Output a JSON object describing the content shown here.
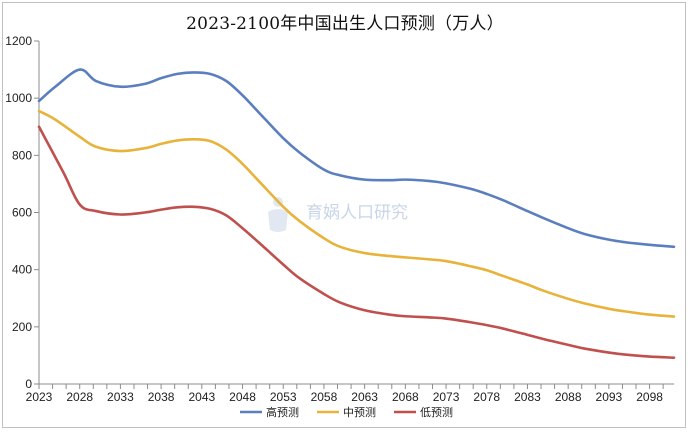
{
  "chart_data": {
    "type": "line",
    "title": "2023-2100年中国出生人口预测（万人）",
    "xlabel": "",
    "ylabel": "",
    "xlim": [
      2023,
      2101
    ],
    "ylim": [
      0,
      1200
    ],
    "y_ticks": [
      0,
      200,
      400,
      600,
      800,
      1000,
      1200
    ],
    "x_ticks": [
      2023,
      2028,
      2033,
      2038,
      2043,
      2048,
      2053,
      2058,
      2063,
      2068,
      2073,
      2078,
      2083,
      2088,
      2093,
      2098
    ],
    "grid": false,
    "legend_position": "bottom",
    "watermark": "育娲人口研究",
    "series": [
      {
        "name": "高预测",
        "color": "#5b7fbe",
        "points": [
          [
            2023,
            990
          ],
          [
            2025,
            1040
          ],
          [
            2028,
            1100
          ],
          [
            2030,
            1060
          ],
          [
            2033,
            1040
          ],
          [
            2036,
            1050
          ],
          [
            2038,
            1070
          ],
          [
            2040,
            1085
          ],
          [
            2042,
            1090
          ],
          [
            2044,
            1085
          ],
          [
            2046,
            1060
          ],
          [
            2048,
            1010
          ],
          [
            2050,
            950
          ],
          [
            2053,
            860
          ],
          [
            2055,
            810
          ],
          [
            2058,
            750
          ],
          [
            2060,
            730
          ],
          [
            2063,
            715
          ],
          [
            2066,
            713
          ],
          [
            2068,
            715
          ],
          [
            2071,
            710
          ],
          [
            2073,
            702
          ],
          [
            2076,
            683
          ],
          [
            2078,
            665
          ],
          [
            2080,
            643
          ],
          [
            2083,
            605
          ],
          [
            2085,
            580
          ],
          [
            2088,
            545
          ],
          [
            2090,
            525
          ],
          [
            2093,
            505
          ],
          [
            2095,
            496
          ],
          [
            2098,
            487
          ],
          [
            2101,
            480
          ]
        ]
      },
      {
        "name": "中预测",
        "color": "#e8b33a",
        "points": [
          [
            2023,
            955
          ],
          [
            2025,
            925
          ],
          [
            2028,
            865
          ],
          [
            2030,
            830
          ],
          [
            2033,
            815
          ],
          [
            2036,
            825
          ],
          [
            2038,
            840
          ],
          [
            2040,
            852
          ],
          [
            2042,
            856
          ],
          [
            2044,
            850
          ],
          [
            2046,
            820
          ],
          [
            2048,
            770
          ],
          [
            2050,
            710
          ],
          [
            2053,
            620
          ],
          [
            2055,
            570
          ],
          [
            2058,
            510
          ],
          [
            2060,
            480
          ],
          [
            2063,
            458
          ],
          [
            2066,
            448
          ],
          [
            2068,
            443
          ],
          [
            2071,
            436
          ],
          [
            2073,
            430
          ],
          [
            2076,
            412
          ],
          [
            2078,
            398
          ],
          [
            2080,
            378
          ],
          [
            2083,
            348
          ],
          [
            2085,
            326
          ],
          [
            2088,
            298
          ],
          [
            2090,
            282
          ],
          [
            2093,
            263
          ],
          [
            2095,
            254
          ],
          [
            2098,
            243
          ],
          [
            2101,
            236
          ]
        ]
      },
      {
        "name": "低预测",
        "color": "#c0504d",
        "points": [
          [
            2023,
            900
          ],
          [
            2026,
            740
          ],
          [
            2028,
            628
          ],
          [
            2030,
            605
          ],
          [
            2033,
            593
          ],
          [
            2036,
            600
          ],
          [
            2038,
            610
          ],
          [
            2040,
            618
          ],
          [
            2042,
            620
          ],
          [
            2044,
            613
          ],
          [
            2046,
            590
          ],
          [
            2048,
            545
          ],
          [
            2050,
            495
          ],
          [
            2053,
            418
          ],
          [
            2055,
            370
          ],
          [
            2058,
            315
          ],
          [
            2060,
            285
          ],
          [
            2063,
            258
          ],
          [
            2066,
            243
          ],
          [
            2068,
            237
          ],
          [
            2071,
            233
          ],
          [
            2073,
            229
          ],
          [
            2076,
            216
          ],
          [
            2078,
            206
          ],
          [
            2080,
            194
          ],
          [
            2083,
            172
          ],
          [
            2085,
            157
          ],
          [
            2088,
            137
          ],
          [
            2090,
            124
          ],
          [
            2093,
            110
          ],
          [
            2095,
            103
          ],
          [
            2098,
            96
          ],
          [
            2101,
            92
          ]
        ]
      }
    ]
  }
}
